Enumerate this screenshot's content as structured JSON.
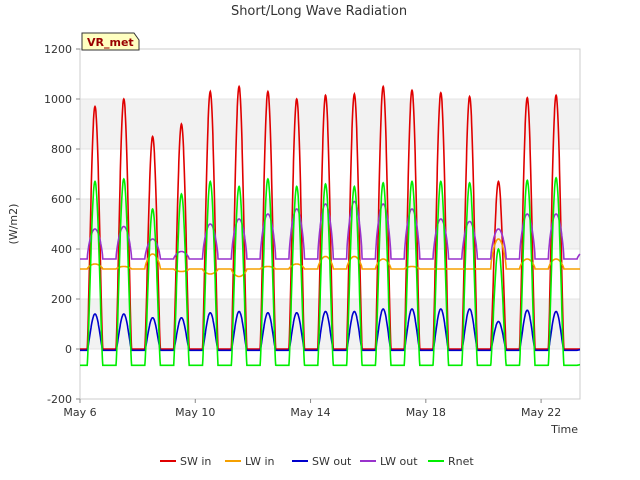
{
  "chart_data": {
    "type": "line",
    "title": "Short/Long Wave Radiation",
    "xlabel": "Time",
    "ylabel": "(W/m2)",
    "badge": "VR_met",
    "xlim": [
      6.0,
      23.35
    ],
    "ylim": [
      -200,
      1200
    ],
    "y_ticks": [
      -200,
      0,
      200,
      400,
      600,
      800,
      1000,
      1200
    ],
    "x_ticks": [
      {
        "day": 6,
        "label": "May 6"
      },
      {
        "day": 10,
        "label": "May 10"
      },
      {
        "day": 14,
        "label": "May 14"
      },
      {
        "day": 18,
        "label": "May 18"
      },
      {
        "day": 22,
        "label": "May 22"
      }
    ],
    "grid": "horizontal bands",
    "legend_position": "bottom",
    "days": [
      6,
      7,
      8,
      9,
      10,
      11,
      12,
      13,
      14,
      15,
      16,
      17,
      18,
      19,
      20,
      21,
      22,
      23
    ],
    "series": [
      {
        "name": "SW in",
        "color": "#e00000",
        "night": 0,
        "daily_peak": [
          970,
          1000,
          850,
          900,
          1030,
          1050,
          1030,
          1000,
          1015,
          1020,
          1050,
          1035,
          1025,
          1010,
          670,
          1005,
          1015,
          0
        ]
      },
      {
        "name": "LW in",
        "color": "#f5a000",
        "night": 320,
        "daily_peak": [
          340,
          330,
          380,
          310,
          300,
          290,
          330,
          340,
          370,
          370,
          360,
          330,
          320,
          320,
          440,
          360,
          360,
          320
        ]
      },
      {
        "name": "SW out",
        "color": "#0000cc",
        "night": -5,
        "daily_peak": [
          140,
          140,
          125,
          125,
          145,
          150,
          145,
          145,
          150,
          150,
          160,
          160,
          160,
          160,
          110,
          155,
          150,
          0
        ]
      },
      {
        "name": "LW out",
        "color": "#9933cc",
        "night": 360,
        "daily_peak": [
          480,
          490,
          440,
          390,
          500,
          520,
          540,
          560,
          580,
          590,
          580,
          560,
          520,
          510,
          480,
          540,
          540,
          390
        ]
      },
      {
        "name": "Rnet",
        "color": "#00ee00",
        "night": -65,
        "daily_peak": [
          670,
          680,
          560,
          620,
          670,
          650,
          680,
          650,
          660,
          650,
          665,
          670,
          670,
          665,
          400,
          675,
          685,
          -60
        ]
      }
    ]
  }
}
